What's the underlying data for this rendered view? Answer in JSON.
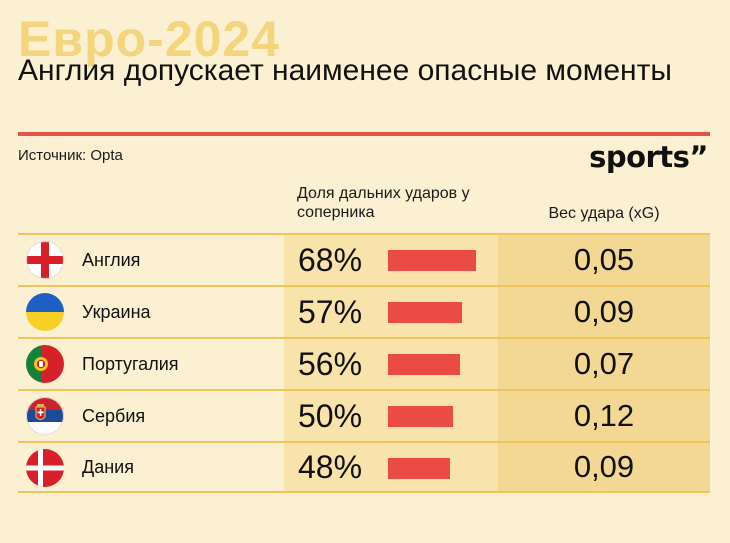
{
  "header": {
    "bg_title": "Евро-2024",
    "title": "Англия допускает наименее опасные моменты",
    "source": "Источник: Opta",
    "logo": "sports”"
  },
  "colors": {
    "background": "#fbf0d2",
    "accent_red": "#e8514a",
    "bar": "#ea4b44",
    "share_column_bg": "#f8e3ab",
    "xg_column_bg": "#f2d892",
    "row_border": "#f0c45a"
  },
  "chart_data": {
    "type": "table",
    "columns": [
      "",
      "Доля дальних ударов у соперника",
      "Вес удара (xG)"
    ],
    "rows": [
      {
        "country": "Англия",
        "flag": "england-flag-icon",
        "share": 68,
        "share_label": "68%",
        "xg": "0,05"
      },
      {
        "country": "Украина",
        "flag": "ukraine-flag-icon",
        "share": 57,
        "share_label": "57%",
        "xg": "0,09"
      },
      {
        "country": "Португалия",
        "flag": "portugal-flag-icon",
        "share": 56,
        "share_label": "56%",
        "xg": "0,07"
      },
      {
        "country": "Сербия",
        "flag": "serbia-flag-icon",
        "share": 50,
        "share_label": "50%",
        "xg": "0,12"
      },
      {
        "country": "Дания",
        "flag": "denmark-flag-icon",
        "share": 48,
        "share_label": "48%",
        "xg": "0,09"
      }
    ]
  }
}
